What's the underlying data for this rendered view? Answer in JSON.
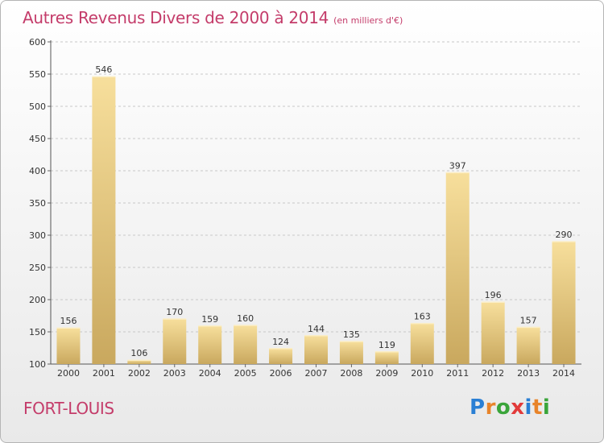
{
  "title": "Autres Revenus Divers de 2000 à 2014",
  "subtitle": "(en milliers d'€)",
  "commune": "FORT-LOUIS",
  "logo": {
    "letters": [
      "P",
      "r",
      "o",
      "x",
      "i",
      "t",
      "i"
    ],
    "colors": [
      "#2a7fd4",
      "#e8842a",
      "#3aa53a",
      "#e23a3a",
      "#2a7fd4",
      "#e8842a",
      "#3aa53a"
    ]
  },
  "colors": {
    "title": "#c43c6a",
    "bar_light": "#f7df9c",
    "bar_dark": "#c9a85e",
    "grid": "#c8c8c8"
  },
  "chart_data": {
    "type": "bar",
    "title": "Autres Revenus Divers de 2000 à 2014",
    "subtitle": "(en milliers d'€)",
    "categories": [
      "2000",
      "2001",
      "2002",
      "2003",
      "2004",
      "2005",
      "2006",
      "2007",
      "2008",
      "2009",
      "2010",
      "2011",
      "2012",
      "2013",
      "2014"
    ],
    "values": [
      156,
      546,
      106,
      170,
      159,
      160,
      124,
      144,
      135,
      119,
      163,
      397,
      196,
      157,
      290
    ],
    "ylim": [
      100,
      600
    ],
    "yticks": [
      100,
      150,
      200,
      250,
      300,
      350,
      400,
      450,
      500,
      550,
      600
    ],
    "grid": true,
    "xlabel": "",
    "ylabel": ""
  }
}
